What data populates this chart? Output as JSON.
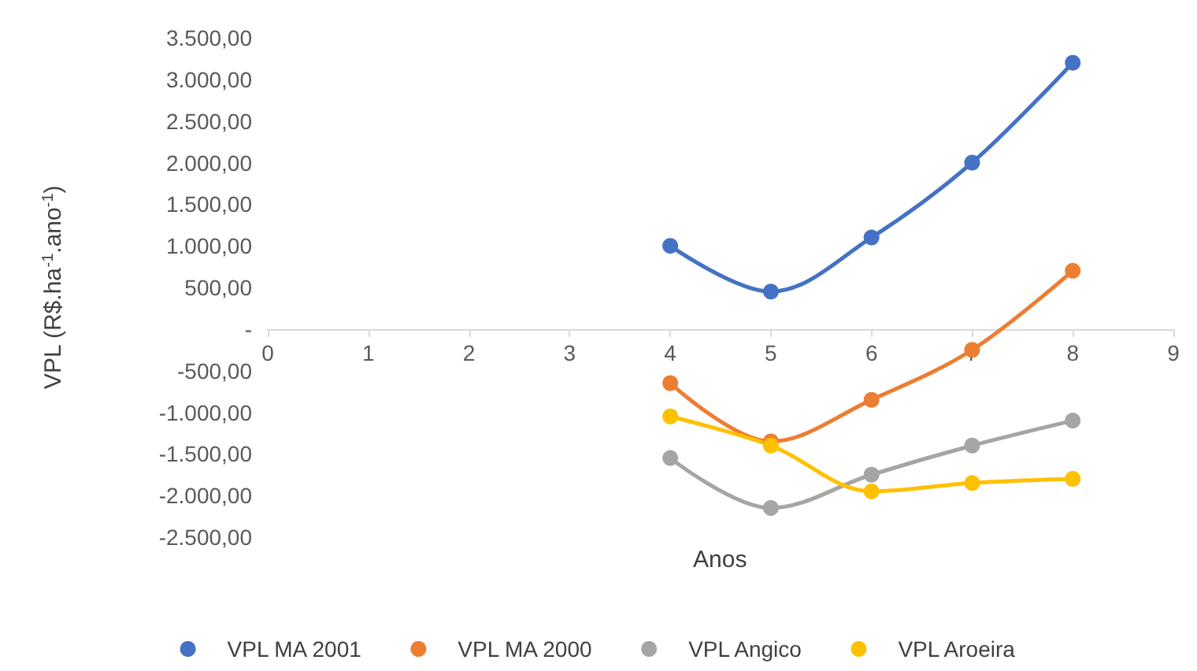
{
  "chart_data": {
    "type": "line",
    "xlabel": "Anos",
    "ylabel": "VPL (R$.ha$^{-1}$.ano$^{-1}$)",
    "xlim": [
      0,
      9
    ],
    "xticks": [
      0,
      1,
      2,
      3,
      4,
      5,
      6,
      7,
      8,
      9
    ],
    "ylim": [
      -2500,
      3500
    ],
    "yticks": [
      {
        "value": -2500,
        "label": "-2.500,00"
      },
      {
        "value": -2000,
        "label": "-2.000,00"
      },
      {
        "value": -1500,
        "label": "-1.500,00"
      },
      {
        "value": -1000,
        "label": "-1.000,00"
      },
      {
        "value": -500,
        "label": "-500,00"
      },
      {
        "value": 0,
        "label": "-"
      },
      {
        "value": 500,
        "label": "500,00"
      },
      {
        "value": 1000,
        "label": "1.000,00"
      },
      {
        "value": 1500,
        "label": "1.500,00"
      },
      {
        "value": 2000,
        "label": "2.000,00"
      },
      {
        "value": 2500,
        "label": "2.500,00"
      },
      {
        "value": 3000,
        "label": "3.000,00"
      },
      {
        "value": 3500,
        "label": "3.500,00"
      }
    ],
    "x": [
      4,
      5,
      6,
      7,
      8
    ],
    "series": [
      {
        "name": "VPL MA 2001",
        "color": "#4472c4",
        "values": [
          1000,
          450,
          1100,
          2000,
          3200
        ]
      },
      {
        "name": "VPL MA 2000",
        "color": "#ed7d31",
        "values": [
          -650,
          -1350,
          -850,
          -250,
          700
        ]
      },
      {
        "name": "VPL Angico",
        "color": "#a5a5a5",
        "values": [
          -1550,
          -2150,
          -1750,
          -1400,
          -1100
        ]
      },
      {
        "name": "VPL Aroeira",
        "color": "#ffc000",
        "values": [
          -1050,
          -1400,
          -1950,
          -1850,
          -1800
        ]
      }
    ],
    "grid": false,
    "legend": "bottom",
    "marker": "circle",
    "line_style": "solid"
  }
}
